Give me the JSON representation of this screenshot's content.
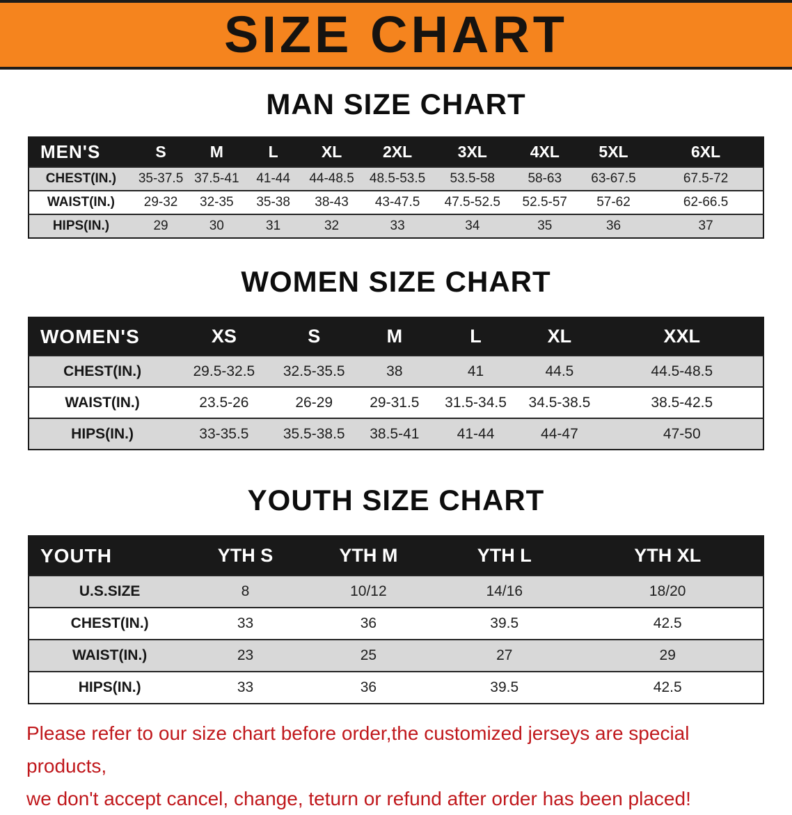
{
  "banner": {
    "title": "SIZE CHART",
    "bg_color": "#f5841e"
  },
  "sections": {
    "men": {
      "heading": "MAN SIZE CHART",
      "table": {
        "header": [
          "MEN'S",
          "S",
          "M",
          "L",
          "XL",
          "2XL",
          "3XL",
          "4XL",
          "5XL",
          "6XL"
        ],
        "rows": [
          [
            "CHEST(IN.)",
            "35-37.5",
            "37.5-41",
            "41-44",
            "44-48.5",
            "48.5-53.5",
            "53.5-58",
            "58-63",
            "63-67.5",
            "67.5-72"
          ],
          [
            "WAIST(IN.)",
            "29-32",
            "32-35",
            "35-38",
            "38-43",
            "43-47.5",
            "47.5-52.5",
            "52.5-57",
            "57-62",
            "62-66.5"
          ],
          [
            "HIPS(IN.)",
            "29",
            "30",
            "31",
            "32",
            "33",
            "34",
            "35",
            "36",
            "37"
          ]
        ]
      }
    },
    "women": {
      "heading": "WOMEN SIZE CHART",
      "table": {
        "header": [
          "WOMEN'S",
          "XS",
          "S",
          "M",
          "L",
          "XL",
          "XXL"
        ],
        "rows": [
          [
            "CHEST(IN.)",
            "29.5-32.5",
            "32.5-35.5",
            "38",
            "41",
            "44.5",
            "44.5-48.5"
          ],
          [
            "WAIST(IN.)",
            "23.5-26",
            "26-29",
            "29-31.5",
            "31.5-34.5",
            "34.5-38.5",
            "38.5-42.5"
          ],
          [
            "HIPS(IN.)",
            "33-35.5",
            "35.5-38.5",
            "38.5-41",
            "41-44",
            "44-47",
            "47-50"
          ]
        ]
      }
    },
    "youth": {
      "heading": "YOUTH SIZE CHART",
      "table": {
        "header": [
          "YOUTH",
          "YTH S",
          "YTH M",
          "YTH L",
          "YTH XL"
        ],
        "rows": [
          [
            "U.S.SIZE",
            "8",
            "10/12",
            "14/16",
            "18/20"
          ],
          [
            "CHEST(IN.)",
            "33",
            "36",
            "39.5",
            "42.5"
          ],
          [
            "WAIST(IN.)",
            "23",
            "25",
            "27",
            "29"
          ],
          [
            "HIPS(IN.)",
            "33",
            "36",
            "39.5",
            "42.5"
          ]
        ]
      }
    }
  },
  "footer": {
    "line1": "Please refer to our size chart before order,the customized jerseys are special products,",
    "line2": "we don't accept cancel, change, teturn or refund after order has been placed!",
    "text_color": "#c0181c"
  }
}
